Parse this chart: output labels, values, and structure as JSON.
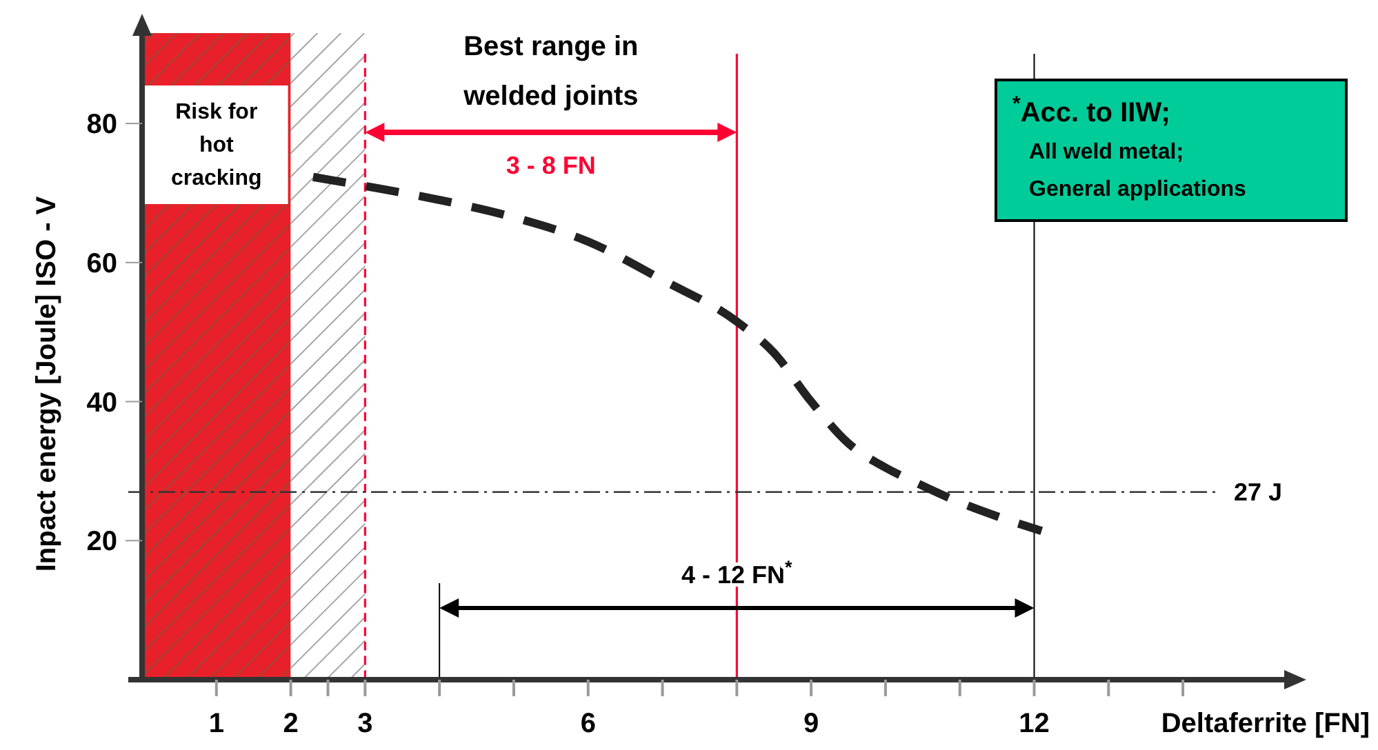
{
  "chart_data": {
    "type": "line",
    "xlabel": "Deltaferrite [FN]",
    "ylabel": "Inpact energy [Joule] ISO - V",
    "xlim": [
      0,
      15.4
    ],
    "ylim": [
      0,
      93
    ],
    "xticks": [
      1,
      2,
      {
        "value": 2.5,
        "label": null
      },
      3,
      {
        "value": 4,
        "label": null
      },
      {
        "value": 5,
        "label": null
      },
      6,
      {
        "value": 7,
        "label": null
      },
      {
        "value": 8,
        "label": null
      },
      9,
      {
        "value": 10,
        "label": null
      },
      {
        "value": 11,
        "label": null
      },
      12,
      {
        "value": 13,
        "label": null
      },
      {
        "value": 14,
        "label": null
      }
    ],
    "yticks": [
      20,
      40,
      60,
      80
    ],
    "series": [
      {
        "color": "#222222",
        "line_style": "dashed",
        "x": [
          2.3,
          3,
          4,
          5,
          6,
          7,
          8,
          8.5,
          9,
          9.5,
          10,
          10.4,
          11,
          11.5,
          12.1
        ],
        "values": [
          72.3,
          71,
          69,
          66.5,
          63,
          57.5,
          51.5,
          47,
          40,
          34,
          30.5,
          28.4,
          25.5,
          23.5,
          21.4
        ]
      }
    ],
    "bands": [
      {
        "axis": "x",
        "from": 0,
        "to": 2,
        "label": "Risk for hot cracking",
        "color": "#e8202a"
      },
      {
        "axis": "x",
        "from": 2,
        "to": 3,
        "color": "#888888"
      }
    ],
    "ref_lines": [
      {
        "axis": "x",
        "value": 3,
        "color": "#ff0033",
        "line_style": "dashed"
      },
      {
        "axis": "x",
        "value": 8,
        "color": "#ff0033",
        "line_style": "solid"
      },
      {
        "axis": "x",
        "value": 12,
        "color": "#000000",
        "line_style": "solid"
      },
      {
        "axis": "x",
        "value": 4,
        "color": "#000000",
        "line_style": "solid"
      },
      {
        "axis": "y",
        "value": 27,
        "label": "27 J",
        "color": "#333333",
        "line_style": "dashed"
      }
    ],
    "annotations": [
      "Best range in welded joints",
      "3 - 8 FN",
      "4 - 12 FN$^{*}$",
      "$^{*}$Acc. to IIW; All weld metal; General applications"
    ]
  }
}
